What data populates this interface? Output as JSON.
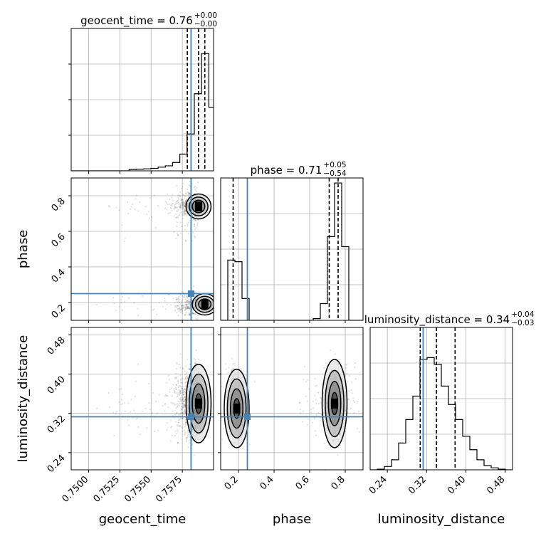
{
  "chart_data": {
    "type": "corner",
    "parameters": [
      {
        "key": "geocent_time",
        "label": "geocent_time",
        "range": [
          0.7486,
          0.76
        ],
        "ticks": [
          0.75,
          0.7525,
          0.755,
          0.7575
        ],
        "tick_labels": [
          "0.7500",
          "0.7525",
          "0.7550",
          "0.7575"
        ]
      },
      {
        "key": "phase",
        "label": "phase",
        "range": [
          0.1,
          0.9
        ],
        "ticks": [
          0.2,
          0.4,
          0.6,
          0.8
        ],
        "tick_labels": [
          "0.2",
          "0.4",
          "0.6",
          "0.8"
        ]
      },
      {
        "key": "luminosity_distance",
        "label": "luminosity_distance",
        "range": [
          0.205,
          0.495
        ],
        "ticks": [
          0.24,
          0.32,
          0.4,
          0.48
        ],
        "tick_labels": [
          "0.24",
          "0.32",
          "0.40",
          "0.48"
        ]
      }
    ],
    "titles": [
      {
        "param": "geocent_time",
        "name": "geocent_time",
        "value": "0.76",
        "plus": "+0.00",
        "minus": "−0.00"
      },
      {
        "param": "phase",
        "name": "phase",
        "value": "0.71",
        "plus": "+0.05",
        "minus": "−0.54"
      },
      {
        "param": "luminosity_distance",
        "name": "luminosity_distance",
        "value": "0.34",
        "plus": "+0.04",
        "minus": "−0.03"
      }
    ],
    "truths": {
      "geocent_time": 0.7582,
      "phase": 0.25,
      "luminosity_distance": 0.313
    },
    "quantiles": {
      "geocent_time": [
        0.7579,
        0.7588,
        0.7593
      ],
      "phase": [
        0.17,
        0.71,
        0.76
      ],
      "luminosity_distance": [
        0.307,
        0.34,
        0.378
      ]
    },
    "histograms": {
      "geocent_time": {
        "edges": [
          0.7486,
          0.74918,
          0.74976,
          0.75034,
          0.75092,
          0.7515,
          0.75208,
          0.75266,
          0.75324,
          0.75382,
          0.7544,
          0.75498,
          0.75556,
          0.75614,
          0.75672,
          0.7573,
          0.75788,
          0.75846,
          0.75904,
          0.75962,
          0.7602
        ],
        "counts": [
          0,
          0,
          0,
          0,
          0,
          0,
          0,
          0,
          0.008,
          0.01,
          0.012,
          0.015,
          0.022,
          0.03,
          0.05,
          0.1,
          0.22,
          0.46,
          0.7,
          0.38
        ]
      },
      "phase": {
        "edges": [
          0.1,
          0.14,
          0.18,
          0.22,
          0.26,
          0.3,
          0.34,
          0.38,
          0.42,
          0.46,
          0.5,
          0.54,
          0.58,
          0.62,
          0.66,
          0.7,
          0.74,
          0.78,
          0.82,
          0.86,
          0.9
        ],
        "counts": [
          0,
          0.36,
          0.35,
          0.13,
          0,
          0,
          0,
          0,
          0,
          0,
          0,
          0,
          0,
          0.01,
          0.1,
          0.5,
          0.82,
          0.44,
          0,
          0
        ]
      },
      "luminosity_distance": {
        "edges": [
          0.205,
          0.2195,
          0.234,
          0.2485,
          0.263,
          0.2775,
          0.292,
          0.3065,
          0.321,
          0.3355,
          0.35,
          0.3645,
          0.379,
          0.3935,
          0.408,
          0.4225,
          0.437,
          0.4515,
          0.466,
          0.4805,
          0.495
        ],
        "counts": [
          0,
          0.004,
          0.02,
          0.06,
          0.16,
          0.3,
          0.44,
          0.66,
          0.67,
          0.63,
          0.5,
          0.39,
          0.3,
          0.2,
          0.12,
          0.06,
          0.025,
          0.012,
          0.004,
          0
        ]
      }
    },
    "contour_levels": [
      0.5,
      1.0,
      1.5,
      2.0
    ],
    "grid": true
  }
}
